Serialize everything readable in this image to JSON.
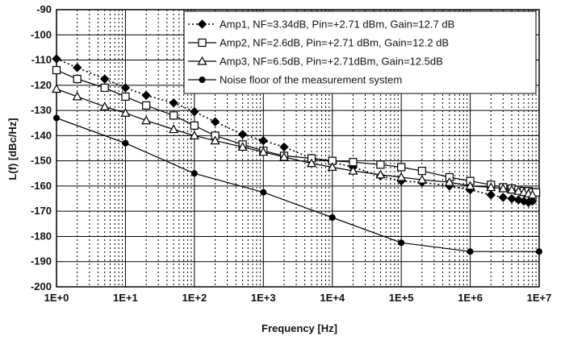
{
  "chart_data": {
    "type": "line",
    "xlabel": "Frequency [Hz]",
    "ylabel": "L(f) [dBc/Hz]",
    "x_scale": "log",
    "xlim": [
      1,
      10000000
    ],
    "ylim": [
      -200,
      -90
    ],
    "x_ticks": [
      "1E+0",
      "1E+1",
      "1E+2",
      "1E+3",
      "1E+4",
      "1E+5",
      "1E+6",
      "1E+7"
    ],
    "y_ticks": [
      "-90",
      "-100",
      "-110",
      "-120",
      "-130",
      "-140",
      "-150",
      "-160",
      "-170",
      "-180",
      "-190",
      "-200"
    ],
    "grid": true,
    "legend_position": "top-right",
    "series": [
      {
        "name": "Amp1, NF=3.34dB, Pin=+2.71 dBm, Gain=12.7 dB",
        "marker": "diamond-filled",
        "line": "dotted",
        "x": [
          1,
          2,
          5,
          10,
          20,
          50,
          100,
          200,
          500,
          1000,
          2000,
          5000,
          10000,
          20000,
          50000,
          100000,
          200000,
          500000,
          1000000,
          2000000,
          3000000,
          4000000,
          5000000,
          6000000,
          7000000,
          8000000
        ],
        "y": [
          -109.5,
          -113,
          -117.5,
          -121,
          -124,
          -127,
          -130.5,
          -134.5,
          -139.5,
          -142,
          -144.5,
          -149,
          -150.5,
          -152.5,
          -156,
          -158,
          -158.5,
          -160,
          -161.5,
          -163.5,
          -164.5,
          -165,
          -165.5,
          -166,
          -166.5,
          -166
        ]
      },
      {
        "name": "Amp2, NF=2.6dB, Pin=+2.71 dBm, Gain=12.2 dB",
        "marker": "square-open",
        "line": "solid",
        "x": [
          1,
          2,
          5,
          10,
          20,
          50,
          100,
          200,
          500,
          1000,
          2000,
          5000,
          10000,
          20000,
          50000,
          100000,
          200000,
          500000,
          1000000,
          2000000,
          3000000,
          4000000,
          5000000,
          6000000,
          7000000,
          8000000,
          9000000
        ],
        "y": [
          -114,
          -117.5,
          -121,
          -124.5,
          -128,
          -132,
          -136,
          -140,
          -143.5,
          -146,
          -148,
          -149,
          -150,
          -150.5,
          -151.5,
          -152.5,
          -154,
          -156.5,
          -158,
          -159.5,
          -160.5,
          -161,
          -161.5,
          -162,
          -162,
          -162.5,
          -162.5
        ]
      },
      {
        "name": "Amp3,  NF=6.5dB, Pin=+2.71dBm, Gain=12.5dB",
        "marker": "triangle-open",
        "line": "solid",
        "x": [
          1,
          2,
          5,
          10,
          20,
          50,
          100,
          200,
          500,
          1000,
          2000,
          5000,
          10000,
          20000,
          50000,
          100000,
          200000,
          500000,
          1000000,
          2000000,
          3000000,
          4000000,
          5000000,
          6000000,
          7000000,
          8000000
        ],
        "y": [
          -121.5,
          -124.5,
          -128.5,
          -131,
          -134,
          -137.5,
          -140,
          -142,
          -144.5,
          -146.5,
          -148.5,
          -151,
          -152.5,
          -154,
          -155.5,
          -156.5,
          -157.5,
          -158.5,
          -160,
          -160.5,
          -161,
          -161.5,
          -162,
          -162.5,
          -163,
          -163.5
        ]
      },
      {
        "name": "Noise floor of the measurement system",
        "marker": "circle-filled",
        "line": "solid",
        "x": [
          1,
          10,
          100,
          1000,
          10000,
          100000,
          1000000,
          10000000
        ],
        "y": [
          -133,
          -143,
          -155,
          -162.5,
          -172.5,
          -182.5,
          -186,
          -186
        ]
      }
    ]
  }
}
